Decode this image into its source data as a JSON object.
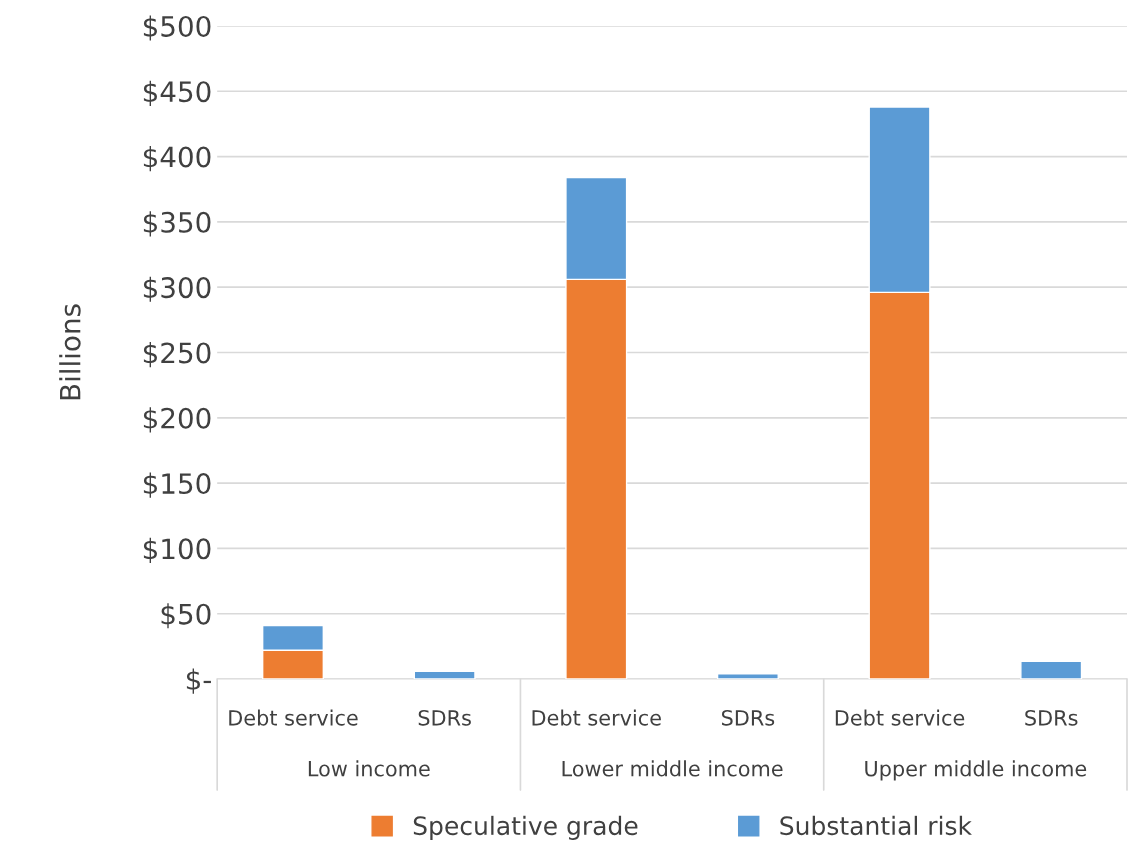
{
  "chart_data": {
    "type": "bar",
    "stacked": true,
    "ylabel": "Billions",
    "categories": [
      "Debt service",
      "SDRs",
      "Debt service",
      "SDRs",
      "Debt service",
      "SDRs"
    ],
    "series": [
      {
        "name": "Speculative grade",
        "color": "#ed7d31",
        "values": [
          22,
          null,
          306,
          null,
          296,
          null
        ]
      },
      {
        "name": "Substantial risk",
        "color": "#5b9bd5",
        "values": [
          19,
          6,
          78,
          4,
          142,
          13.5
        ]
      }
    ],
    "annotations": [
      "Low income",
      "Lower middle income",
      "Upper middle income"
    ],
    "ylim": [
      0,
      500
    ],
    "yticks": [
      {
        "value": 0,
        "label": "$-"
      },
      {
        "value": 50,
        "label": "$50"
      },
      {
        "value": 100,
        "label": "$100"
      },
      {
        "value": 150,
        "label": "$150"
      },
      {
        "value": 200,
        "label": "$200"
      },
      {
        "value": 250,
        "label": "$250"
      },
      {
        "value": 300,
        "label": "$300"
      },
      {
        "value": 350,
        "label": "$350"
      },
      {
        "value": 400,
        "label": "$400"
      },
      {
        "value": 450,
        "label": "$450"
      },
      {
        "value": 500,
        "label": "$500"
      }
    ],
    "grid": "y",
    "legend": "bottom"
  }
}
